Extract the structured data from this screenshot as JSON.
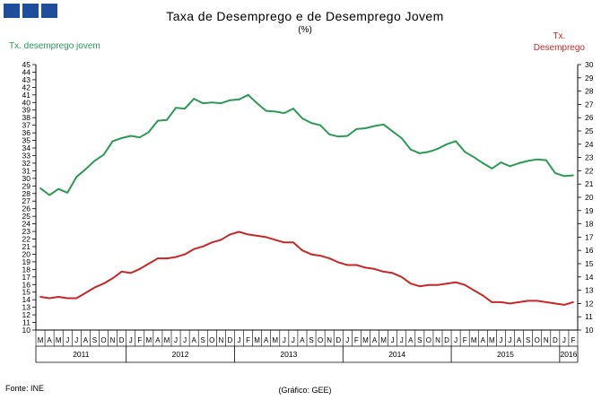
{
  "header": {
    "title": "Taxa de Desemprego e de Desemprego Jovem",
    "subtitle": "(%)"
  },
  "axes": {
    "left_label": "Tx. desemprego jovem",
    "right_label_line1": "Tx.",
    "right_label_line2": "Desemprego"
  },
  "footer": {
    "source": "Fonte: INE",
    "credit": "(Gráfico: GEE)"
  },
  "colors": {
    "youth": "#2a9a55",
    "total": "#c62828",
    "brand": "#1f4e9a"
  },
  "chart_data": {
    "type": "line",
    "title": "Taxa de Desemprego e de Desemprego Jovem",
    "subtitle": "(%)",
    "x_month_labels": [
      "M",
      "A",
      "M",
      "J",
      "J",
      "A",
      "S",
      "O",
      "N",
      "D",
      "J",
      "F",
      "M",
      "A",
      "M",
      "J",
      "J",
      "A",
      "S",
      "O",
      "N",
      "D",
      "J",
      "F",
      "M",
      "A",
      "M",
      "J",
      "J",
      "A",
      "S",
      "O",
      "N",
      "D",
      "J",
      "F",
      "M",
      "A",
      "M",
      "J",
      "J",
      "A",
      "S",
      "O",
      "N",
      "D",
      "J",
      "F",
      "M",
      "A",
      "M",
      "J",
      "J",
      "A",
      "S",
      "O",
      "N",
      "D",
      "J",
      "F"
    ],
    "year_groups": [
      {
        "label": "2011",
        "months": 10
      },
      {
        "label": "2012",
        "months": 12
      },
      {
        "label": "2013",
        "months": 12
      },
      {
        "label": "2014",
        "months": 12
      },
      {
        "label": "2015",
        "months": 12
      },
      {
        "label": "2016",
        "months": 2
      }
    ],
    "y_left": {
      "label": "Tx. desemprego jovem",
      "min": 10,
      "max": 45,
      "step": 1
    },
    "y_right": {
      "label": "Tx. Desemprego",
      "min": 10,
      "max": 30,
      "step": 1
    },
    "series": [
      {
        "name": "Tx. desemprego jovem",
        "axis": "left",
        "color": "#2a9a55",
        "values": [
          28.7,
          27.8,
          28.6,
          28.1,
          30.2,
          31.2,
          32.3,
          33.1,
          34.9,
          35.3,
          35.6,
          35.4,
          36.1,
          37.6,
          37.7,
          39.3,
          39.2,
          40.5,
          39.9,
          40.0,
          39.9,
          40.3,
          40.4,
          41.0,
          39.9,
          38.9,
          38.8,
          38.6,
          39.2,
          37.9,
          37.3,
          37.0,
          35.8,
          35.5,
          35.6,
          36.5,
          36.6,
          36.9,
          37.1,
          36.2,
          35.3,
          33.8,
          33.3,
          33.5,
          33.9,
          34.5,
          34.9,
          33.5,
          32.8,
          32.0,
          31.3,
          32.1,
          31.6,
          32.0,
          32.3,
          32.5,
          32.4,
          30.7,
          30.3,
          30.4
        ]
      },
      {
        "name": "Tx. Desemprego",
        "axis": "right",
        "color": "#c62828",
        "values": [
          12.5,
          12.4,
          12.5,
          12.4,
          12.4,
          12.8,
          13.2,
          13.5,
          13.9,
          14.4,
          14.3,
          14.6,
          15.0,
          15.4,
          15.4,
          15.5,
          15.7,
          16.1,
          16.3,
          16.6,
          16.8,
          17.2,
          17.4,
          17.2,
          17.1,
          17.0,
          16.8,
          16.6,
          16.6,
          16.0,
          15.7,
          15.6,
          15.4,
          15.1,
          14.9,
          14.9,
          14.7,
          14.6,
          14.4,
          14.3,
          14.0,
          13.5,
          13.3,
          13.4,
          13.4,
          13.5,
          13.6,
          13.4,
          13.0,
          12.6,
          12.1,
          12.1,
          12.0,
          12.1,
          12.2,
          12.2,
          12.1,
          12.0,
          11.9,
          12.1
        ]
      }
    ]
  }
}
